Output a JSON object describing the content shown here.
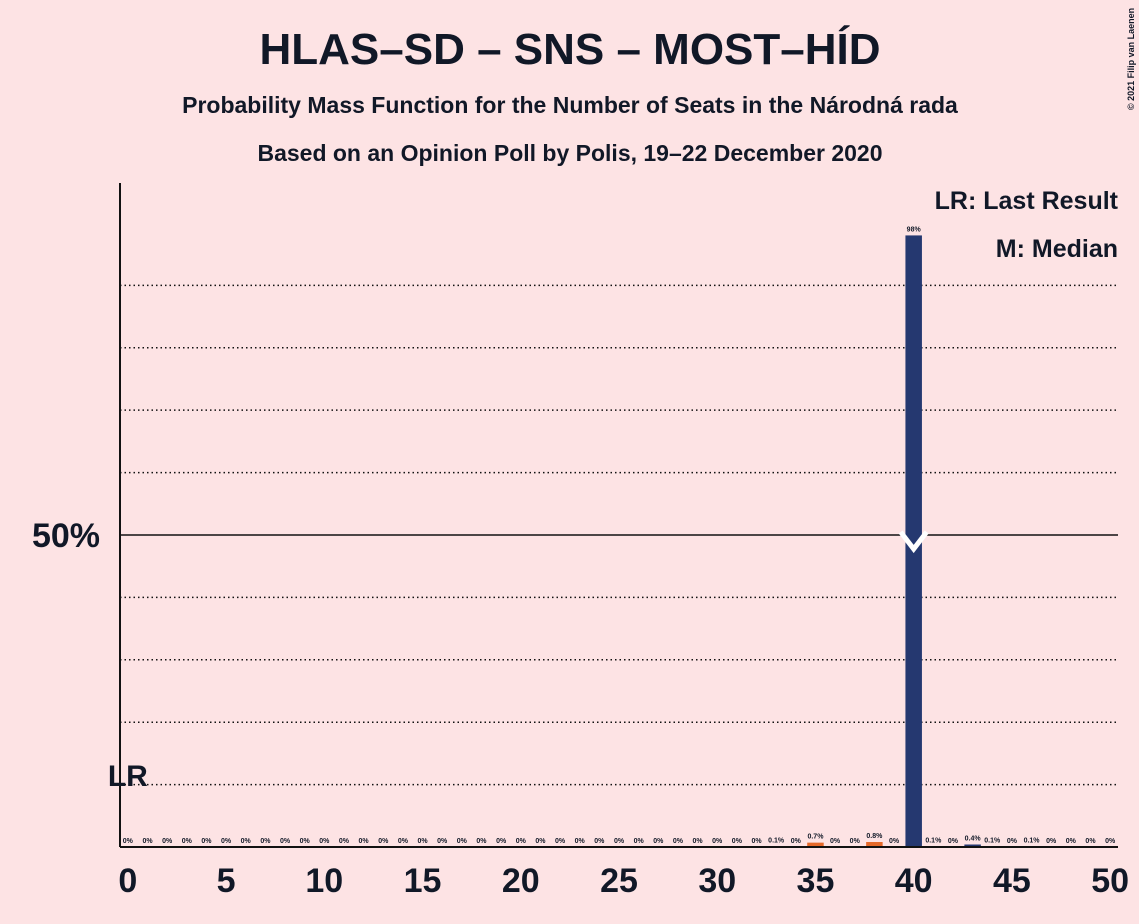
{
  "chart_data": {
    "type": "bar",
    "title": "HLAS–SD – SNS – MOST–HÍD",
    "subtitle": "Probability Mass Function for the Number of Seats in the Národná rada",
    "subtitle2": "Based on an Opinion Poll by Polis, 19–22 December 2020",
    "copyright": "© 2021 Filip van Laenen",
    "x": [
      0,
      1,
      2,
      3,
      4,
      5,
      6,
      7,
      8,
      9,
      10,
      11,
      12,
      13,
      14,
      15,
      16,
      17,
      18,
      19,
      20,
      21,
      22,
      23,
      24,
      25,
      26,
      27,
      28,
      29,
      30,
      31,
      32,
      33,
      34,
      35,
      36,
      37,
      38,
      39,
      40,
      41,
      42,
      43,
      44,
      45,
      46,
      47,
      48,
      49,
      50
    ],
    "values": [
      0,
      0,
      0,
      0,
      0,
      0,
      0,
      0,
      0,
      0,
      0,
      0,
      0,
      0,
      0,
      0,
      0,
      0,
      0,
      0,
      0,
      0,
      0,
      0,
      0,
      0,
      0,
      0,
      0,
      0,
      0,
      0,
      0,
      0.1,
      0,
      0.7,
      0,
      0,
      0.8,
      0,
      98,
      0.1,
      0,
      0.4,
      0.1,
      0,
      0.1,
      0,
      0,
      0,
      0
    ],
    "value_labels": [
      "0%",
      "0%",
      "0%",
      "0%",
      "0%",
      "0%",
      "0%",
      "0%",
      "0%",
      "0%",
      "0%",
      "0%",
      "0%",
      "0%",
      "0%",
      "0%",
      "0%",
      "0%",
      "0%",
      "0%",
      "0%",
      "0%",
      "0%",
      "0%",
      "0%",
      "0%",
      "0%",
      "0%",
      "0%",
      "0%",
      "0%",
      "0%",
      "0%",
      "0.1%",
      "0%",
      "0.7%",
      "0%",
      "0%",
      "0.8%",
      "0%",
      "98%",
      "0.1%",
      "0%",
      "0.4%",
      "0.1%",
      "0%",
      "0.1%",
      "0%",
      "0%",
      "0%",
      "0%"
    ],
    "color": "#253870",
    "colors": [
      "#253870",
      "#253870",
      "#253870",
      "#253870",
      "#253870",
      "#253870",
      "#253870",
      "#253870",
      "#253870",
      "#253870",
      "#253870",
      "#253870",
      "#253870",
      "#253870",
      "#253870",
      "#253870",
      "#253870",
      "#253870",
      "#253870",
      "#253870",
      "#253870",
      "#253870",
      "#253870",
      "#253870",
      "#253870",
      "#253870",
      "#253870",
      "#253870",
      "#253870",
      "#253870",
      "#253870",
      "#253870",
      "#253870",
      "#e5692a",
      "#253870",
      "#e5692a",
      "#253870",
      "#253870",
      "#e5692a",
      "#253870",
      "#253870",
      "#253870",
      "#253870",
      "#253870",
      "#253870",
      "#253870",
      "#253870",
      "#253870",
      "#253870",
      "#253870",
      "#253870"
    ],
    "xlim": [
      -0.4,
      50.4
    ],
    "xticks": [
      0,
      5,
      10,
      15,
      20,
      25,
      30,
      35,
      40,
      45,
      50
    ],
    "ylim": [
      0,
      106.4
    ],
    "yticks": [
      {
        "value": 50,
        "label": "50%"
      }
    ],
    "gridlines": [
      10,
      20,
      30,
      40,
      60,
      70,
      80,
      90
    ],
    "median": {
      "x": 40,
      "y": 50
    },
    "last_result": {
      "x": 0,
      "label": "LR"
    },
    "legend": [
      "LR: Last Result",
      "M: Median"
    ]
  }
}
